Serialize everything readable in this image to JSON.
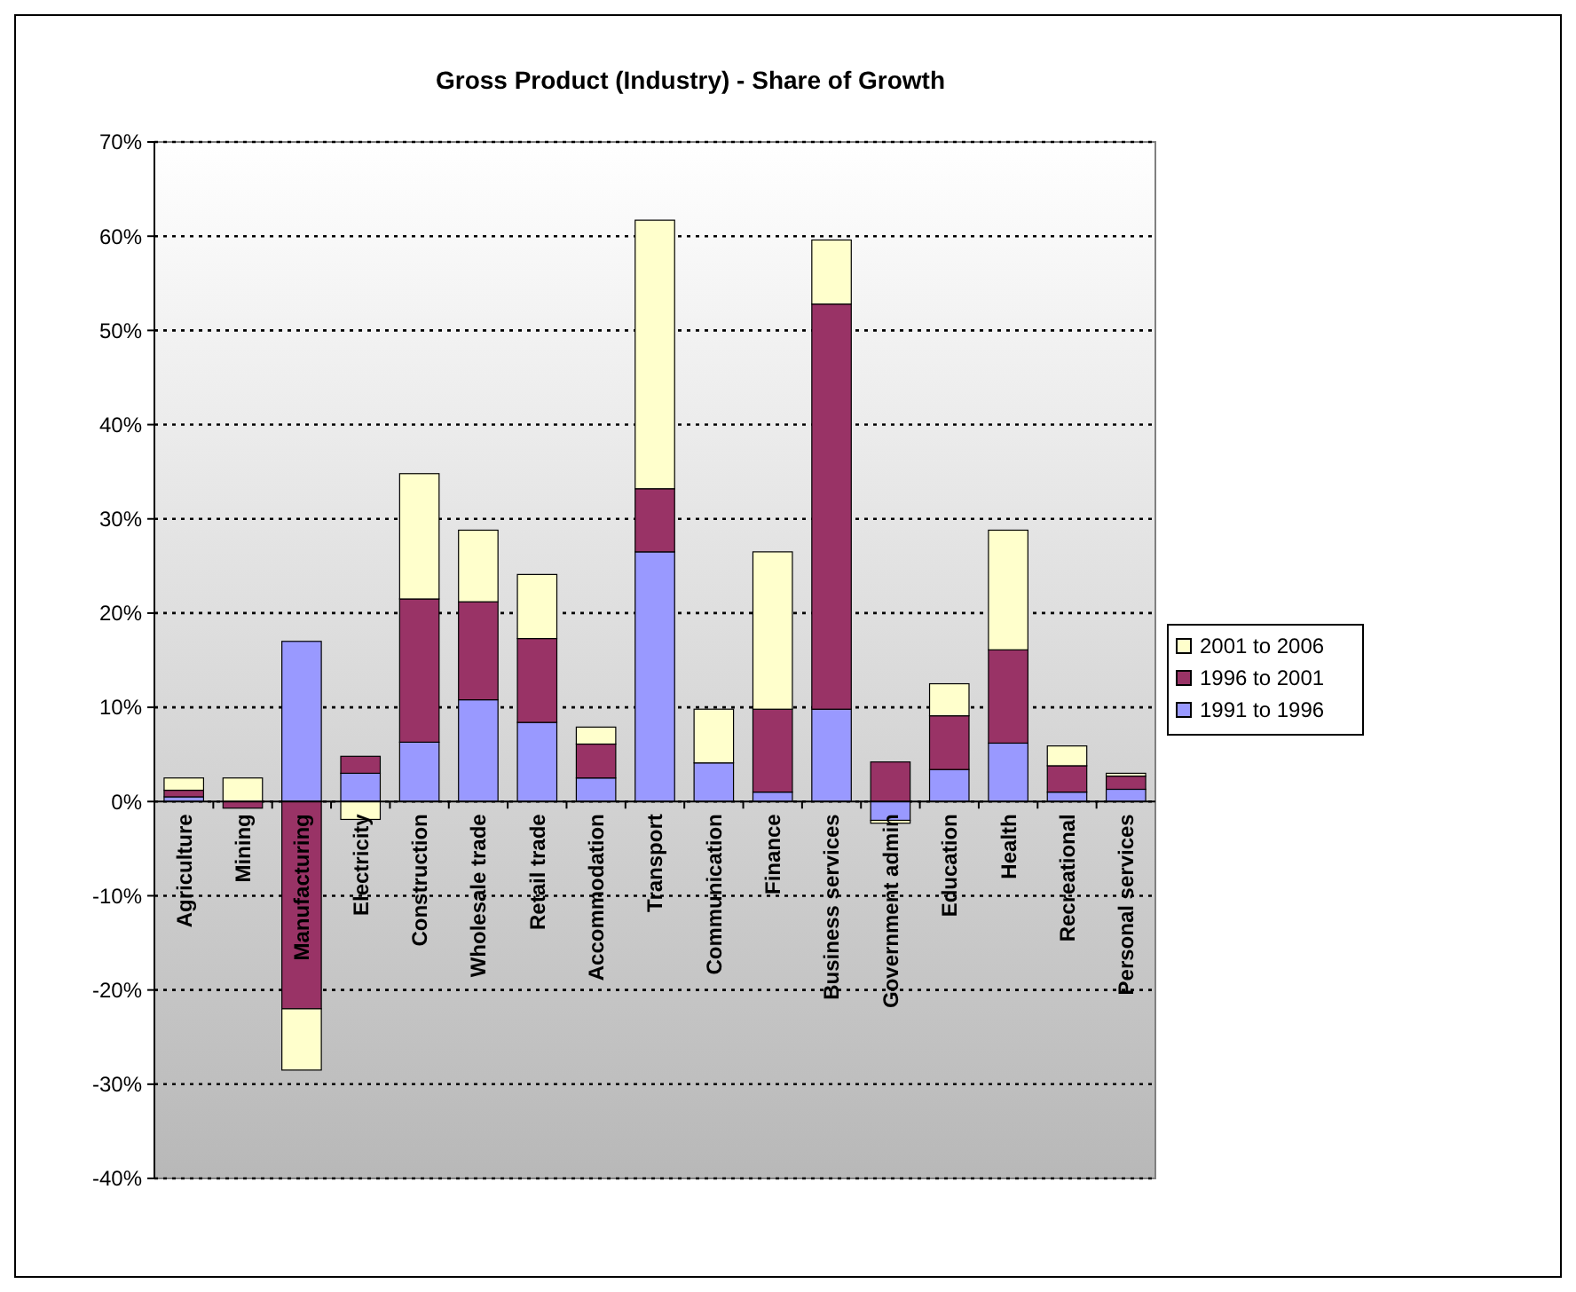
{
  "chart_data": {
    "type": "bar",
    "title": "Gross Product (Industry) - Share of Growth",
    "stacked": true,
    "categories": [
      "Agriculture",
      "Mining",
      "Manufacturing",
      "Electricity",
      "Construction",
      "Wholesale trade",
      "Retail trade",
      "Accommodation",
      "Transport",
      "Communication",
      "Finance",
      "Business services",
      "Government admin",
      "Education",
      "Health",
      "Recreational",
      "Personal services"
    ],
    "series": [
      {
        "name": "1991 to 1996",
        "color": "#9999ff",
        "values": [
          0.5,
          0,
          17.0,
          3.0,
          6.3,
          10.8,
          8.4,
          2.5,
          26.5,
          4.1,
          1.0,
          9.8,
          -2.0,
          3.4,
          6.2,
          1.0,
          1.3
        ]
      },
      {
        "name": "1996 to 2001",
        "color": "#993366",
        "values": [
          0.7,
          -0.7,
          -22.0,
          1.8,
          15.2,
          10.4,
          8.9,
          3.6,
          6.7,
          0,
          8.8,
          43.0,
          4.2,
          5.7,
          9.9,
          2.8,
          1.4
        ]
      },
      {
        "name": "2001 to 2006",
        "color": "#ffffcc",
        "values": [
          1.3,
          2.5,
          -6.5,
          -1.9,
          13.3,
          7.6,
          6.8,
          1.8,
          28.5,
          5.7,
          16.7,
          6.8,
          -0.3,
          3.4,
          12.7,
          2.1,
          0.3
        ]
      }
    ],
    "ylim": [
      -40,
      70
    ],
    "yticks": [
      {
        "value": -40,
        "label": "-40%"
      },
      {
        "value": -30,
        "label": "-30%"
      },
      {
        "value": -20,
        "label": "-20%"
      },
      {
        "value": -10,
        "label": "-10%"
      },
      {
        "value": 0,
        "label": "0%"
      },
      {
        "value": 10,
        "label": "10%"
      },
      {
        "value": 20,
        "label": "20%"
      },
      {
        "value": 30,
        "label": "30%"
      },
      {
        "value": 40,
        "label": "40%"
      },
      {
        "value": 50,
        "label": "50%"
      },
      {
        "value": 60,
        "label": "60%"
      },
      {
        "value": 70,
        "label": "70%"
      }
    ],
    "grid": "y",
    "legend": "right"
  }
}
